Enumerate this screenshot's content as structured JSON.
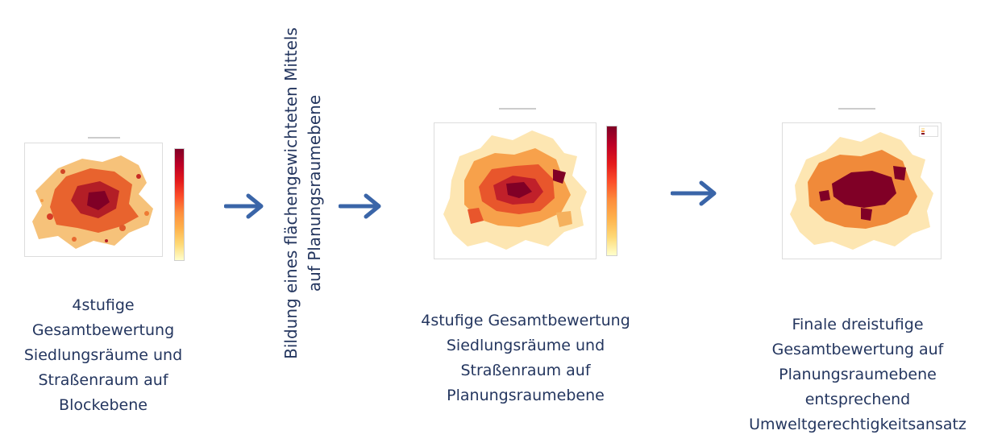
{
  "flow": {
    "step1": {
      "caption_lines": [
        "4stufige",
        "Gesamtbewertung",
        "Siedlungsräume und",
        "Straßenraum auf",
        "Blockebene"
      ]
    },
    "process": {
      "lines": [
        "Bildung eines flächengewichteten Mittels",
        "auf Planungsraumebene"
      ]
    },
    "step2": {
      "caption_lines": [
        "4stufige Gesamtbewertung",
        "Siedlungsräume und",
        "Straßenraum auf",
        "Planungsraumebene"
      ]
    },
    "step3": {
      "caption_lines": [
        "Finale dreistufige",
        "Gesamtbewertung auf",
        "Planungsraumebene",
        "entsprechend",
        "Umweltgerechtigkeitsansatz"
      ]
    }
  },
  "icons": {
    "arrow": "arrow-right-icon"
  },
  "colors": {
    "arrow": "#3a65a8",
    "text": "#24365f",
    "map_dark": "#800026",
    "map_mid": "#f08a3a",
    "map_light": "#fde6b2"
  }
}
